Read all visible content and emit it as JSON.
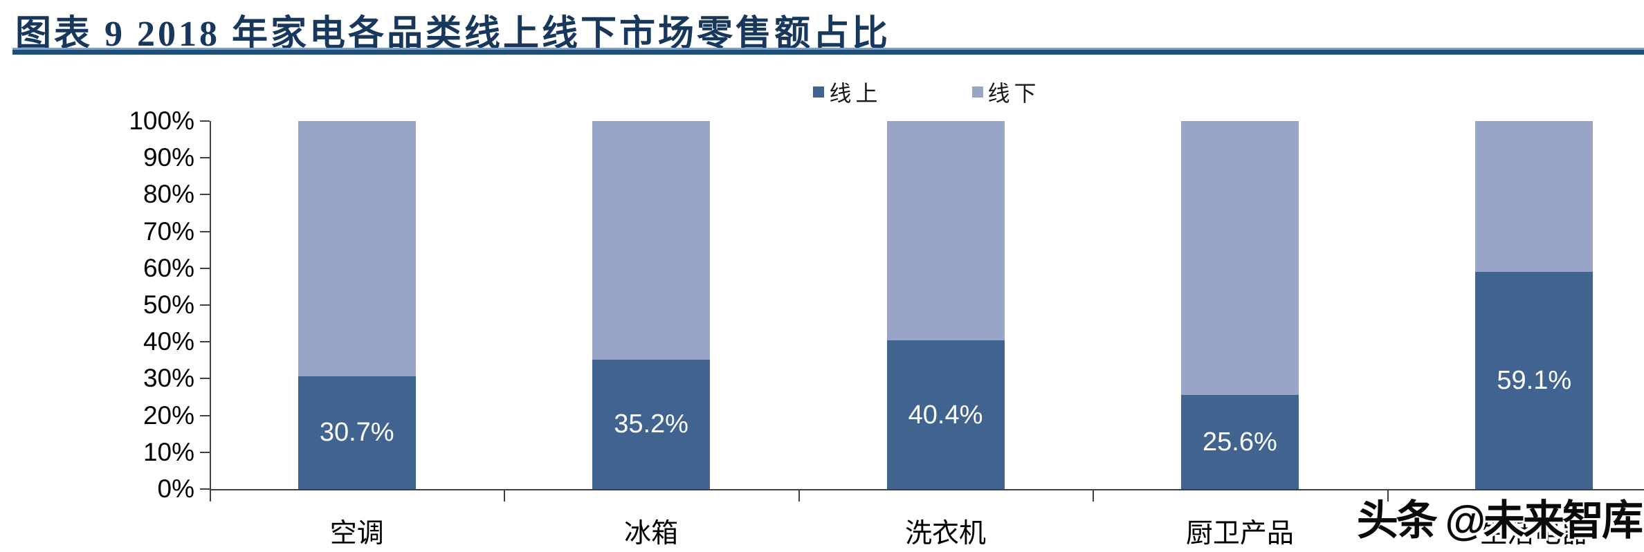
{
  "header": {
    "title": "图表 9  2018 年家电各品类线上线下市场零售额占比"
  },
  "watermark": {
    "text": "头条 @未来智库"
  },
  "colors": {
    "title": "#17375D",
    "rule": "#1F4E79",
    "online": "#406390",
    "offline": "#98A4C8",
    "axis": "#404040",
    "value_label": "#ffffff"
  },
  "chart_data": {
    "type": "bar",
    "subtype": "stacked-100-percent",
    "title": "2018 年家电各品类线上线下市场零售额占比",
    "categories": [
      "空调",
      "冰箱",
      "洗衣机",
      "厨卫产品",
      "生活电器"
    ],
    "series": [
      {
        "name": "线上",
        "color": "#406390",
        "values": [
          30.7,
          35.2,
          40.4,
          25.6,
          59.1
        ],
        "data_labels": [
          "30.7%",
          "35.2%",
          "40.4%",
          "25.6%",
          "59.1%"
        ]
      },
      {
        "name": "线下",
        "color": "#98A4C8",
        "values": [
          69.3,
          64.8,
          59.6,
          74.4,
          40.9
        ],
        "data_labels": null
      }
    ],
    "xlabel": "",
    "ylabel": "",
    "ylim": [
      0,
      100
    ],
    "y_ticks": [
      "0%",
      "10%",
      "20%",
      "30%",
      "40%",
      "50%",
      "60%",
      "70%",
      "80%",
      "90%",
      "100%"
    ],
    "grid": false,
    "legend_position": "top-center",
    "legend_entries": [
      "线上",
      "线下"
    ]
  }
}
